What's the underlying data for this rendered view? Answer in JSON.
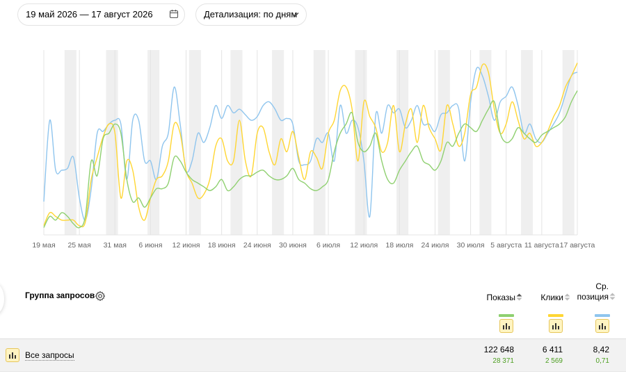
{
  "filters": {
    "date_range": "19 май 2026 — 17 август 2026",
    "detail": "Детализация: по дням"
  },
  "colors": {
    "impressions": "#8fd070",
    "clicks": "#ffd633",
    "position": "#8fc5ee",
    "weekend": "#efefef",
    "axis_label": "#666666",
    "delta": "#4c9e20"
  },
  "chart_data": {
    "type": "line",
    "x_start": "2026-05-19",
    "x_end": "2026-08-17",
    "x_tick_labels": [
      "19 мая",
      "25 мая",
      "31 мая",
      "6 июня",
      "12 июня",
      "18 июня",
      "24 июня",
      "30 июня",
      "6 июля",
      "12 июля",
      "18 июля",
      "24 июля",
      "30 июля",
      "5 августа",
      "11 августа",
      "17 августа"
    ],
    "weekend_shading": true,
    "grid": "vertical",
    "legend": "none",
    "series": [
      {
        "color": "#8fc5ee",
        "values": [
          0.18,
          0.62,
          0.35,
          0.35,
          0.36,
          0.42,
          0.2,
          0.08,
          0.25,
          0.55,
          0.56,
          0.6,
          0.62,
          0.6,
          0.3,
          0.62,
          0.62,
          0.4,
          0.4,
          0.3,
          0.48,
          0.55,
          0.8,
          0.6,
          0.35,
          0.4,
          0.55,
          0.5,
          0.58,
          0.7,
          0.63,
          0.7,
          0.66,
          0.68,
          0.65,
          0.62,
          0.64,
          0.7,
          0.72,
          0.68,
          0.62,
          0.63,
          0.6,
          0.4,
          0.38,
          0.4,
          0.52,
          0.5,
          0.55,
          0.4,
          0.7,
          0.55,
          0.62,
          0.58,
          0.4,
          0.1,
          0.65,
          0.55,
          0.7,
          0.66,
          0.68,
          0.58,
          0.62,
          0.7,
          0.6,
          0.6,
          0.56,
          0.65,
          0.66,
          0.7,
          0.68,
          0.4,
          0.72,
          0.9,
          0.86,
          0.75,
          0.62,
          0.72,
          0.75,
          0.8,
          0.7,
          0.55,
          0.6,
          0.52,
          0.5,
          0.55,
          0.6,
          0.66,
          0.76,
          0.86,
          0.88
        ]
      },
      {
        "color": "#ffd633",
        "values": [
          0.05,
          0.12,
          0.1,
          0.08,
          0.08,
          0.08,
          0.05,
          0.07,
          0.3,
          0.42,
          0.53,
          0.6,
          0.55,
          0.2,
          0.4,
          0.35,
          0.15,
          0.08,
          0.2,
          0.3,
          0.32,
          0.4,
          0.6,
          0.55,
          0.35,
          0.28,
          0.2,
          0.22,
          0.3,
          0.48,
          0.52,
          0.4,
          0.4,
          0.62,
          0.4,
          0.32,
          0.55,
          0.58,
          0.45,
          0.38,
          0.52,
          0.45,
          0.56,
          0.42,
          0.3,
          0.45,
          0.42,
          0.36,
          0.55,
          0.62,
          0.78,
          0.8,
          0.68,
          0.4,
          0.72,
          0.64,
          0.58,
          0.45,
          0.5,
          0.7,
          0.45,
          0.6,
          0.68,
          0.5,
          0.7,
          0.58,
          0.52,
          0.46,
          0.7,
          0.6,
          0.48,
          0.55,
          0.76,
          0.8,
          0.92,
          0.88,
          0.68,
          0.55,
          0.6,
          0.72,
          0.62,
          0.52,
          0.55,
          0.48,
          0.5,
          0.56,
          0.64,
          0.7,
          0.8,
          0.86,
          0.93
        ]
      },
      {
        "color": "#8fd070",
        "values": [
          0.04,
          0.1,
          0.08,
          0.12,
          0.1,
          0.06,
          0.04,
          0.1,
          0.4,
          0.32,
          0.52,
          0.55,
          0.6,
          0.55,
          0.3,
          0.18,
          0.2,
          0.15,
          0.2,
          0.25,
          0.25,
          0.28,
          0.42,
          0.4,
          0.34,
          0.3,
          0.28,
          0.26,
          0.24,
          0.26,
          0.3,
          0.24,
          0.26,
          0.3,
          0.32,
          0.32,
          0.34,
          0.35,
          0.32,
          0.3,
          0.3,
          0.32,
          0.36,
          0.3,
          0.28,
          0.25,
          0.24,
          0.26,
          0.3,
          0.45,
          0.55,
          0.6,
          0.66,
          0.5,
          0.45,
          0.48,
          0.55,
          0.4,
          0.3,
          0.28,
          0.35,
          0.4,
          0.45,
          0.48,
          0.4,
          0.38,
          0.35,
          0.4,
          0.5,
          0.48,
          0.55,
          0.6,
          0.58,
          0.56,
          0.62,
          0.68,
          0.72,
          0.55,
          0.5,
          0.52,
          0.58,
          0.55,
          0.52,
          0.5,
          0.54,
          0.56,
          0.58,
          0.6,
          0.64,
          0.72,
          0.78
        ]
      }
    ]
  },
  "table": {
    "group_header": "Группа запросов",
    "columns": {
      "impressions": "Показы",
      "clicks": "Клики",
      "position_line1": "Ср.",
      "position_line2": "позиция"
    },
    "rows": [
      {
        "label": "Все запросы",
        "impressions": "122 648",
        "impressions_delta": "28 371",
        "clicks": "6 411",
        "clicks_delta": "2 569",
        "position": "8,42",
        "position_delta": "0,71"
      }
    ]
  }
}
